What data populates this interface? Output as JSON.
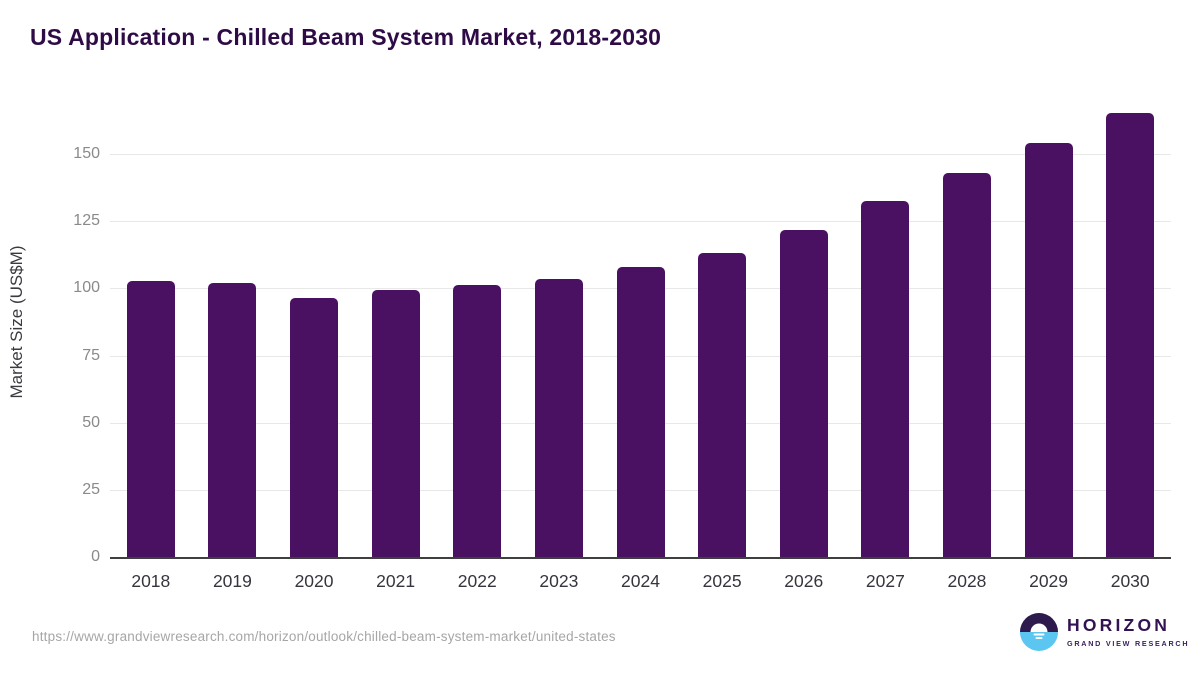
{
  "header": {
    "title": "US Application - Chilled Beam System Market, 2018-2030"
  },
  "chart_data": {
    "type": "bar",
    "categories": [
      "2018",
      "2019",
      "2020",
      "2021",
      "2022",
      "2023",
      "2024",
      "2025",
      "2026",
      "2027",
      "2028",
      "2029",
      "2030"
    ],
    "values": [
      103.0,
      102.2,
      96.8,
      99.8,
      101.6,
      103.8,
      108.2,
      113.5,
      122.0,
      132.8,
      143.3,
      154.6,
      165.8
    ],
    "title": "US Application - Chilled Beam System Market, 2018-2030",
    "xlabel": "",
    "ylabel": "Market Size (US$M)",
    "ylim": [
      0,
      170
    ],
    "yticks": [
      0,
      25,
      50,
      75,
      100,
      125,
      150
    ],
    "grid": true,
    "legend": "none",
    "bar_color": "#4A1061"
  },
  "footer": {
    "source_url": "https://www.grandviewresearch.com/horizon/outlook/chilled-beam-system-market/united-states",
    "logo": {
      "brand": "HORIZON",
      "sub_brand": "GRAND VIEW RESEARCH"
    }
  },
  "colors": {
    "title": "#2E0B46",
    "bar": "#4A1061",
    "gridline": "#E8E8E8",
    "axis_line": "#3F3F3F",
    "y_tick_label": "#8A8A8A",
    "x_tick_label": "#35353D",
    "url_text": "#A6A6A6",
    "logo_purple": "#331253",
    "logo_blue": "#5BC6EF"
  }
}
